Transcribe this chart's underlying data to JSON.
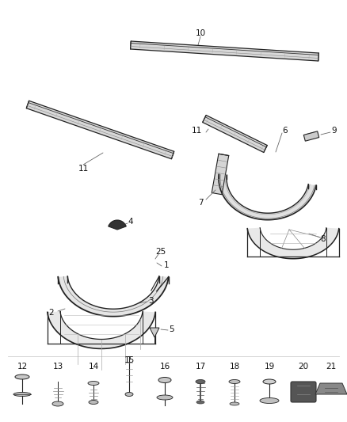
{
  "background_color": "#ffffff",
  "fig_width": 4.38,
  "fig_height": 5.33,
  "dpi": 100,
  "label_fontsize": 7.5,
  "label_color": "#111111",
  "line_color": "#555555",
  "line_color_dark": "#222222",
  "line_color_light": "#999999"
}
